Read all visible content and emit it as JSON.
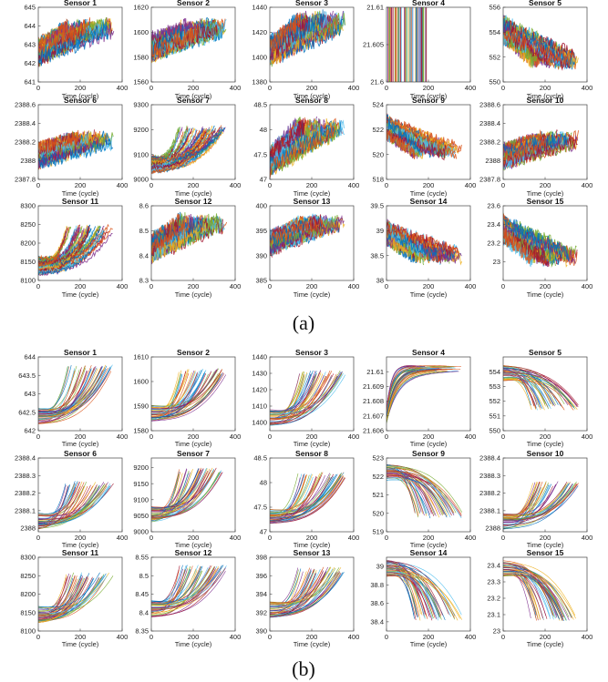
{
  "captions": {
    "a": "(a)",
    "b": "(b)"
  },
  "colors": [
    "#0072bd",
    "#d95319",
    "#edb120",
    "#7e2f8e",
    "#77ac30",
    "#4dbeee",
    "#a2142f"
  ],
  "chart_data": [
    {
      "type": "line",
      "panel": "a",
      "xlabel": "Time (cycle)",
      "xlim": [
        0,
        400
      ],
      "xticks": [
        0,
        200,
        400
      ],
      "charts": [
        {
          "title": "Sensor 1",
          "ylim": [
            641,
            645
          ],
          "yticks": [
            641,
            642,
            643,
            644,
            645
          ],
          "trend": "up",
          "start": 642.6,
          "end": 643.9,
          "noise": 0.45
        },
        {
          "title": "Sensor 2",
          "ylim": [
            1560,
            1620
          ],
          "yticks": [
            1560,
            1580,
            1600,
            1620
          ],
          "trend": "up",
          "start": 1588,
          "end": 1603,
          "noise": 7
        },
        {
          "title": "Sensor 3",
          "ylim": [
            1380,
            1440
          ],
          "yticks": [
            1380,
            1400,
            1420,
            1440
          ],
          "trend": "up",
          "start": 1405,
          "end": 1428,
          "noise": 8
        },
        {
          "title": "Sensor 4",
          "ylim": [
            21.6,
            21.61
          ],
          "yticks": [
            21.6,
            21.605,
            21.61
          ],
          "trend": "const",
          "start": 21.61,
          "end": 21.61,
          "noise": 0
        },
        {
          "title": "Sensor 5",
          "ylim": [
            550,
            556
          ],
          "yticks": [
            550,
            552,
            554,
            556
          ],
          "trend": "down",
          "start": 554.2,
          "end": 551.8,
          "noise": 0.7
        },
        {
          "title": "Sensor 6",
          "ylim": [
            2387.8,
            2388.6
          ],
          "yticks": [
            2387.8,
            2388,
            2388.2,
            2388.4,
            2388.6
          ],
          "trend": "up",
          "start": 2388.05,
          "end": 2388.22,
          "noise": 0.08
        },
        {
          "title": "Sensor 7",
          "ylim": [
            9000,
            9300
          ],
          "yticks": [
            9000,
            9100,
            9200,
            9300
          ],
          "trend": "expup",
          "start": 9060,
          "end": 9200,
          "noise": 8
        },
        {
          "title": "Sensor 8",
          "ylim": [
            47,
            48.5
          ],
          "yticks": [
            47,
            47.5,
            48,
            48.5
          ],
          "trend": "up",
          "start": 47.35,
          "end": 48.05,
          "noise": 0.18
        },
        {
          "title": "Sensor 9",
          "ylim": [
            518,
            524
          ],
          "yticks": [
            518,
            520,
            522,
            524
          ],
          "trend": "down",
          "start": 522.2,
          "end": 520.3,
          "noise": 0.5
        },
        {
          "title": "Sensor 10",
          "ylim": [
            2387.8,
            2388.6
          ],
          "yticks": [
            2387.8,
            2388,
            2388.2,
            2388.4,
            2388.6
          ],
          "trend": "up",
          "start": 2388.05,
          "end": 2388.22,
          "noise": 0.08
        },
        {
          "title": "Sensor 11",
          "ylim": [
            8100,
            8300
          ],
          "yticks": [
            8100,
            8150,
            8200,
            8250,
            8300
          ],
          "trend": "expup",
          "start": 8140,
          "end": 8240,
          "noise": 6
        },
        {
          "title": "Sensor 12",
          "ylim": [
            8.3,
            8.6
          ],
          "yticks": [
            8.3,
            8.4,
            8.5,
            8.6
          ],
          "trend": "up",
          "start": 8.43,
          "end": 8.53,
          "noise": 0.035
        },
        {
          "title": "Sensor 13",
          "ylim": [
            385,
            400
          ],
          "yticks": [
            385,
            390,
            395,
            400
          ],
          "trend": "up",
          "start": 392.5,
          "end": 396.5,
          "noise": 1.4
        },
        {
          "title": "Sensor 14",
          "ylim": [
            38,
            39.5
          ],
          "yticks": [
            38,
            38.5,
            39,
            39.5
          ],
          "trend": "down",
          "start": 38.95,
          "end": 38.5,
          "noise": 0.14
        },
        {
          "title": "Sensor 15",
          "ylim": [
            22.8,
            23.6
          ],
          "yticks": [
            23,
            23.2,
            23.4,
            23.6
          ],
          "trend": "down",
          "start": 23.35,
          "end": 23.05,
          "noise": 0.09
        }
      ]
    },
    {
      "type": "line",
      "panel": "b",
      "xlabel": "Time (cycle)",
      "xlim": [
        0,
        400
      ],
      "xticks": [
        0,
        200,
        400
      ],
      "charts": [
        {
          "title": "Sensor 1",
          "ylim": [
            642,
            644
          ],
          "yticks": [
            642,
            642.5,
            643,
            643.5,
            644
          ],
          "trend": "expup",
          "start": 642.4,
          "end": 643.7,
          "noise": 0
        },
        {
          "title": "Sensor 2",
          "ylim": [
            1580,
            1610
          ],
          "yticks": [
            1580,
            1590,
            1600,
            1610
          ],
          "trend": "expup",
          "start": 1587,
          "end": 1604,
          "noise": 0
        },
        {
          "title": "Sensor 3",
          "ylim": [
            1395,
            1440
          ],
          "yticks": [
            1400,
            1410,
            1420,
            1430,
            1440
          ],
          "trend": "expup",
          "start": 1403,
          "end": 1430,
          "noise": 0
        },
        {
          "title": "Sensor 4",
          "ylim": [
            21.606,
            21.611
          ],
          "yticks": [
            21.606,
            21.607,
            21.608,
            21.609,
            21.61
          ],
          "trend": "saturate",
          "start": 21.607,
          "end": 21.6102,
          "noise": 0
        },
        {
          "title": "Sensor 5",
          "ylim": [
            550,
            555
          ],
          "yticks": [
            550,
            551,
            552,
            553,
            554
          ],
          "trend": "expdown",
          "start": 553.9,
          "end": 551.6,
          "noise": 0
        },
        {
          "title": "Sensor 6",
          "ylim": [
            2387.98,
            2388.4
          ],
          "yticks": [
            2388,
            2388.1,
            2388.2,
            2388.3,
            2388.4
          ],
          "trend": "expup",
          "start": 2388.04,
          "end": 2388.25,
          "noise": 0
        },
        {
          "title": "Sensor 7",
          "ylim": [
            9000,
            9230
          ],
          "yticks": [
            9000,
            9050,
            9100,
            9150,
            9200
          ],
          "trend": "expup",
          "start": 9055,
          "end": 9190,
          "noise": 0
        },
        {
          "title": "Sensor 8",
          "ylim": [
            47,
            48.5
          ],
          "yticks": [
            47,
            47.5,
            48,
            48.5
          ],
          "trend": "expup",
          "start": 47.3,
          "end": 48.15,
          "noise": 0
        },
        {
          "title": "Sensor 9",
          "ylim": [
            519,
            523
          ],
          "yticks": [
            519,
            520,
            521,
            522,
            523
          ],
          "trend": "expdown",
          "start": 522.2,
          "end": 519.9,
          "noise": 0
        },
        {
          "title": "Sensor 10",
          "ylim": [
            2387.98,
            2388.4
          ],
          "yticks": [
            2388,
            2388.1,
            2388.2,
            2388.3,
            2388.4
          ],
          "trend": "expup",
          "start": 2388.04,
          "end": 2388.25,
          "noise": 0
        },
        {
          "title": "Sensor 11",
          "ylim": [
            8100,
            8300
          ],
          "yticks": [
            8100,
            8150,
            8200,
            8250,
            8300
          ],
          "trend": "expup",
          "start": 8145,
          "end": 8250,
          "noise": 0
        },
        {
          "title": "Sensor 12",
          "ylim": [
            8.35,
            8.55
          ],
          "yticks": [
            8.35,
            8.4,
            8.45,
            8.5,
            8.55
          ],
          "trend": "expup",
          "start": 8.41,
          "end": 8.52,
          "noise": 0
        },
        {
          "title": "Sensor 13",
          "ylim": [
            390,
            398
          ],
          "yticks": [
            390,
            392,
            394,
            396,
            398
          ],
          "trend": "expup",
          "start": 392.3,
          "end": 396.6,
          "noise": 0
        },
        {
          "title": "Sensor 14",
          "ylim": [
            38.3,
            39.1
          ],
          "yticks": [
            38.4,
            38.6,
            38.8,
            39
          ],
          "trend": "expdown",
          "start": 38.98,
          "end": 38.45,
          "noise": 0
        },
        {
          "title": "Sensor 15",
          "ylim": [
            23,
            23.45
          ],
          "yticks": [
            23,
            23.1,
            23.2,
            23.3,
            23.4
          ],
          "trend": "expdown",
          "start": 23.38,
          "end": 23.08,
          "noise": 0
        }
      ]
    }
  ]
}
